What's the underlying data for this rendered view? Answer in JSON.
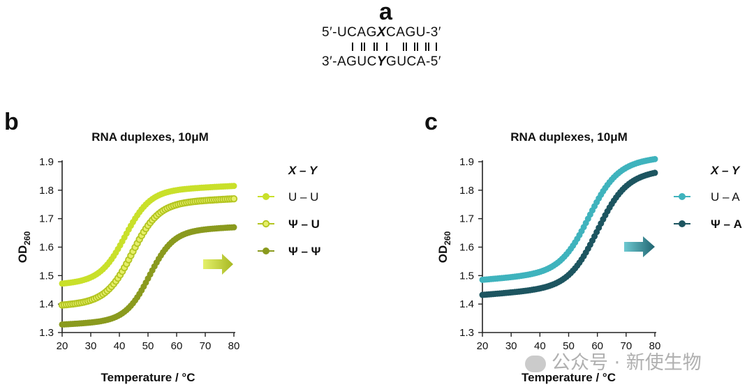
{
  "panel_letters": {
    "a": "a",
    "b": "b",
    "c": "c"
  },
  "sequence": {
    "top_left": "5′-UCAG",
    "top_var": "X",
    "top_right": "CAGU-3′",
    "bottom_left": "3′-AGUC",
    "bottom_var": "Y",
    "bottom_right": "GUCA-5′"
  },
  "watermark": "公众号 · 新使生物",
  "colors": {
    "lime": "#c9e02a",
    "olive_mid": "#b3c520",
    "olive_dark": "#8a9a1e",
    "teal_light": "#3fb3bd",
    "teal_dark": "#1d5560"
  },
  "chart_data": [
    {
      "type": "scatter",
      "title": "RNA duplexes, 10μM",
      "xlabel": "Temperature / °C",
      "ylabel": "OD",
      "ylabel_sub": "260",
      "xlim": [
        20,
        80
      ],
      "ylim": [
        1.3,
        1.9
      ],
      "xticks": [
        20,
        30,
        40,
        50,
        60,
        70,
        80
      ],
      "yticks": [
        1.3,
        1.4,
        1.5,
        1.6,
        1.7,
        1.8,
        1.9
      ],
      "legend_title": "X – Y",
      "series": [
        {
          "name": "U – U",
          "color": "#c9e02a",
          "style": "filled",
          "low": 1.47,
          "high": 1.785,
          "tm": 42,
          "k": 0.23,
          "slope": 0.0005
        },
        {
          "name": "Ψ – U",
          "color": "#b3c520",
          "style": "ringed",
          "low": 1.395,
          "high": 1.74,
          "tm": 44.5,
          "k": 0.22,
          "slope": 0.0005
        },
        {
          "name": "Ψ – Ψ",
          "color": "#8a9a1e",
          "style": "filled",
          "low": 1.328,
          "high": 1.64,
          "tm": 50.5,
          "k": 0.24,
          "slope": 0.0005
        }
      ]
    },
    {
      "type": "scatter",
      "title": "RNA duplexes, 10μM",
      "xlabel": "Temperature / °C",
      "ylabel": "OD",
      "ylabel_sub": "260",
      "xlim": [
        20,
        80
      ],
      "ylim": [
        1.3,
        1.9
      ],
      "xticks": [
        20,
        30,
        40,
        50,
        60,
        70,
        80
      ],
      "yticks": [
        1.3,
        1.4,
        1.5,
        1.6,
        1.7,
        1.8,
        1.9
      ],
      "legend_title": "X – Y",
      "series": [
        {
          "name": "U – A",
          "color": "#3fb3bd",
          "style": "filled",
          "low": 1.485,
          "high": 1.865,
          "tm": 57,
          "k": 0.2,
          "slope": 0.0008
        },
        {
          "name": "Ψ – A",
          "color": "#1d5560",
          "style": "filled",
          "low": 1.432,
          "high": 1.82,
          "tm": 60,
          "k": 0.2,
          "slope": 0.0008
        }
      ]
    }
  ]
}
